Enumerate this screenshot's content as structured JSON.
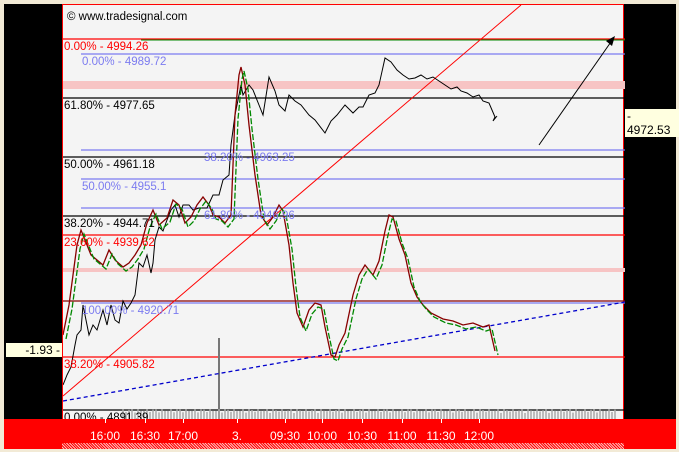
{
  "watermark": "© www.tradesignal.com",
  "left_label": "-1.93 -",
  "right_label": "- 4972.53",
  "fib_labels": [
    {
      "text": "0.00% - 4994.26",
      "color": "#ff0000"
    },
    {
      "text": "0.00% - 4989.72",
      "color": "#7b7bf0"
    },
    {
      "text": "61.80% - 4977.65",
      "color": "#000000"
    },
    {
      "text": "38.20% - 4963.25",
      "color": "#7b7bf0"
    },
    {
      "text": "50.00% - 4961.18",
      "color": "#000000"
    },
    {
      "text": "50.00% - 4955.1",
      "color": "#7b7bf0"
    },
    {
      "text": "61.80% - 4946.96",
      "color": "#7b7bf0"
    },
    {
      "text": "38.20% - 4944.71",
      "color": "#000000"
    },
    {
      "text": "23.60% - 4939.62",
      "color": "#ff0000"
    },
    {
      "text": "100.00% - 4920.71",
      "color": "#7b7bf0"
    },
    {
      "text": "38.20% - 4905.82",
      "color": "#ff0000"
    },
    {
      "text": "0.00% - 4891.39",
      "color": "#000000"
    }
  ],
  "time_labels": [
    "16:00",
    "16:30",
    "17:00",
    "3.",
    "09:30",
    "10:00",
    "10:30",
    "11:00",
    "11:30",
    "12:00"
  ],
  "colors": {
    "axis": "#ff0000",
    "panel": "#000000",
    "chart_bg": "#f4f4f4",
    "band": "#f7c4c4"
  }
}
